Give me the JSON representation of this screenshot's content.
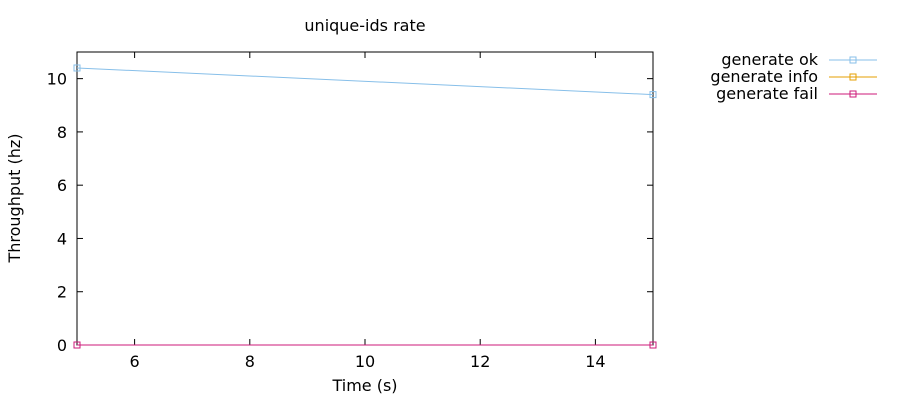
{
  "chart_data": {
    "type": "line",
    "title": "unique-ids rate",
    "xlabel": "Time (s)",
    "ylabel": "Throughput (hz)",
    "xlim": [
      5,
      15
    ],
    "ylim": [
      0,
      11
    ],
    "xticks": [
      6,
      8,
      10,
      12,
      14
    ],
    "yticks": [
      0,
      2,
      4,
      6,
      8,
      10
    ],
    "grid": false,
    "legend_position": "outside-right",
    "series": [
      {
        "name": "generate ok",
        "color": "#87bfe9",
        "marker": "square",
        "x": [
          5,
          15
        ],
        "y": [
          10.4,
          9.4
        ]
      },
      {
        "name": "generate info",
        "color": "#e69f00",
        "marker": "square",
        "x": [],
        "y": []
      },
      {
        "name": "generate fail",
        "color": "#cc1a7a",
        "marker": "square",
        "x": [
          5,
          15
        ],
        "y": [
          0,
          0
        ]
      }
    ]
  }
}
